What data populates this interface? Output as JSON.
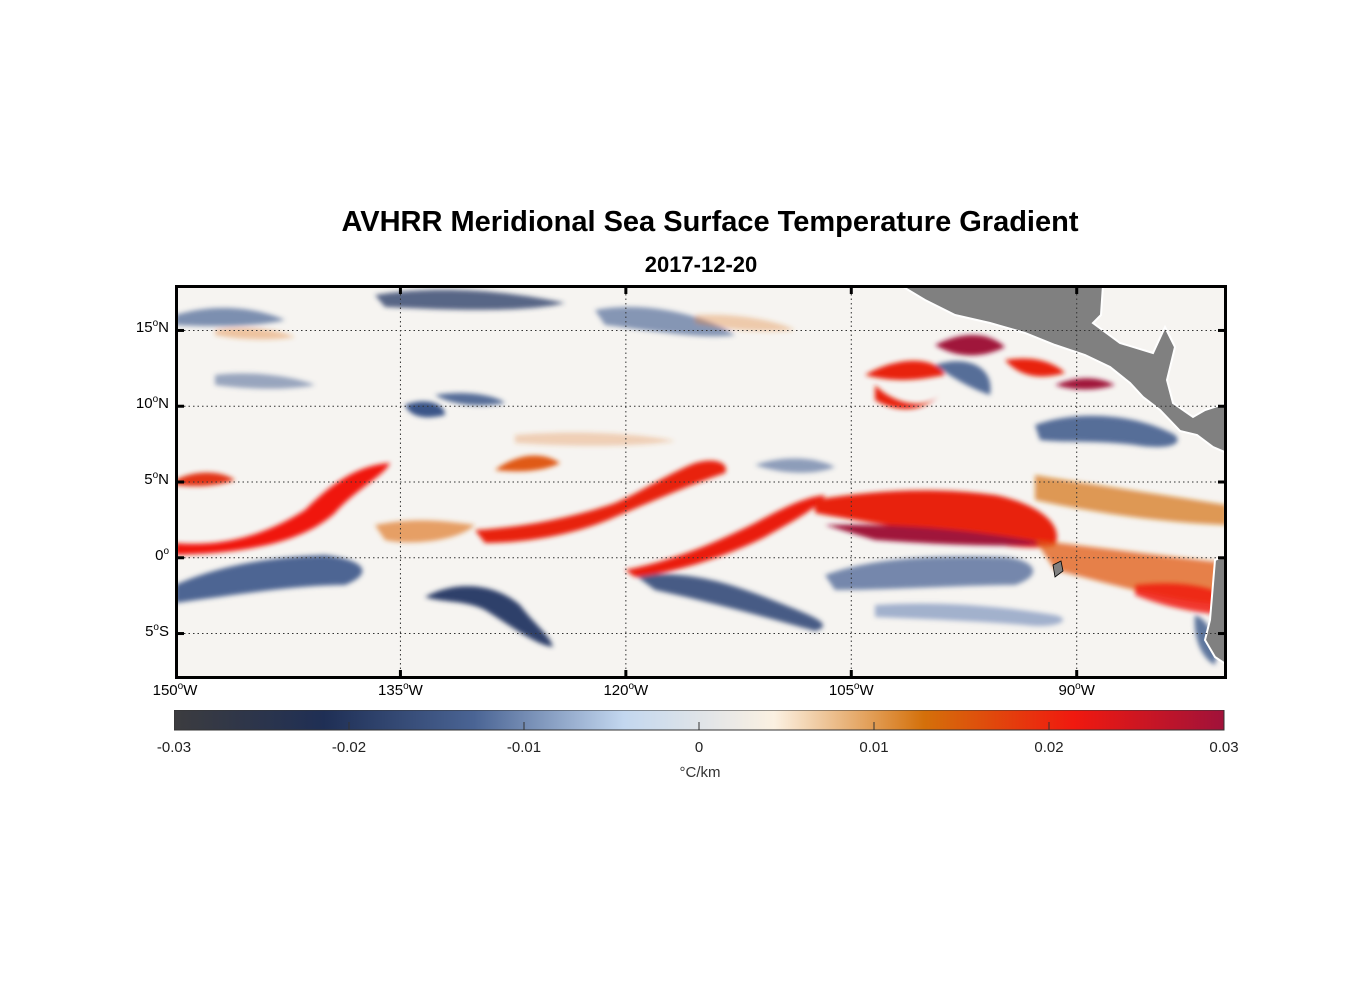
{
  "title": "AVHRR Meridional Sea Surface Temperature Gradient",
  "subtitle": "2017-12-20",
  "map": {
    "projection": "equirectangular",
    "lon_range": [
      -150,
      -80
    ],
    "lat_range": [
      -8,
      18
    ],
    "grid": "dotted",
    "land_color": "#808080",
    "lat_ticks": [
      {
        "value": 15,
        "label": "15",
        "hemi": "N"
      },
      {
        "value": 10,
        "label": "10",
        "hemi": "N"
      },
      {
        "value": 5,
        "label": "5",
        "hemi": "N"
      },
      {
        "value": 0,
        "label": "0",
        "hemi": ""
      },
      {
        "value": -5,
        "label": "5",
        "hemi": "S"
      }
    ],
    "lon_ticks": [
      {
        "value": -150,
        "label": "150",
        "hemi": "W"
      },
      {
        "value": -135,
        "label": "135",
        "hemi": "W"
      },
      {
        "value": -120,
        "label": "120",
        "hemi": "W"
      },
      {
        "value": -105,
        "label": "105",
        "hemi": "W"
      },
      {
        "value": -90,
        "label": "90",
        "hemi": "W"
      }
    ]
  },
  "colorbar": {
    "min": -0.03,
    "max": 0.03,
    "ticks": [
      "-0.03",
      "-0.02",
      "-0.01",
      "0",
      "0.01",
      "0.02",
      "0.03"
    ],
    "tick_values": [
      -0.03,
      -0.02,
      -0.01,
      0,
      0.01,
      0.02,
      0.03
    ],
    "units": "°C/km",
    "colors": [
      "#3c3c3f",
      "#1f2f55",
      "#4a6494",
      "#c3d7ef",
      "#fbf1e2",
      "#d4700a",
      "#f0190f",
      "#a0123a"
    ]
  }
}
